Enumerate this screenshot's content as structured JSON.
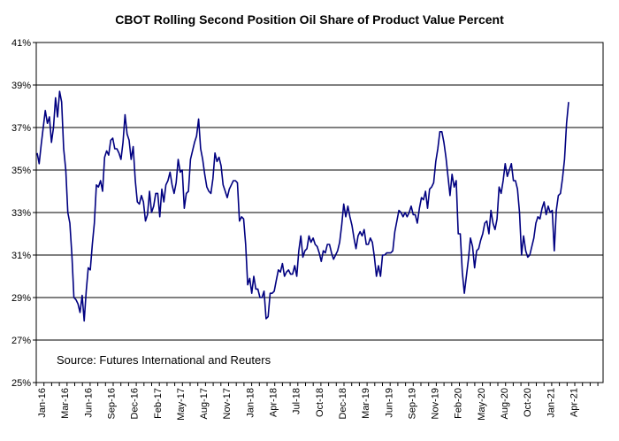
{
  "chart_data": {
    "type": "line",
    "title": "CBOT Rolling Second Position Oil Share of Product Value Percent",
    "annotation": "Source: Futures International and Reuters",
    "ylim": [
      25,
      41
    ],
    "y_ticks": [
      "25%",
      "27%",
      "29%",
      "31%",
      "33%",
      "35%",
      "37%",
      "39%",
      "41%"
    ],
    "x_ticks": [
      "Jan-16",
      "Mar-16",
      "Jun-16",
      "Sep-16",
      "Dec-16",
      "Feb-17",
      "May-17",
      "Aug-17",
      "Nov-17",
      "Jan-18",
      "Apr-18",
      "Jul-18",
      "Oct-18",
      "Dec-18",
      "Mar-19",
      "Jun-19",
      "Sep-19",
      "Nov-19",
      "Feb-20",
      "May-20",
      "Aug-20",
      "Oct-20",
      "Jan-21",
      "Apr-21"
    ],
    "grid": "horizontal",
    "line_color": "#000080",
    "series": [
      {
        "values": [
          35.8,
          35.3,
          36.2,
          37.0,
          37.8,
          37.2,
          37.5,
          36.3,
          37.0,
          38.4,
          37.5,
          38.7,
          38.2,
          36.0,
          35.0,
          33.0,
          32.5,
          31.0,
          29.0,
          28.9,
          28.7,
          28.3,
          29.1,
          27.9,
          29.3,
          30.4,
          30.3,
          31.5,
          32.5,
          34.3,
          34.2,
          34.5,
          34.0,
          35.6,
          35.9,
          35.7,
          36.4,
          36.5,
          36.0,
          36.0,
          35.8,
          35.5,
          36.3,
          37.6,
          36.7,
          36.4,
          35.5,
          36.1,
          34.5,
          33.5,
          33.4,
          33.8,
          33.5,
          32.6,
          32.9,
          34.0,
          33.0,
          33.3,
          33.9,
          33.9,
          32.8,
          34.1,
          33.5,
          34.3,
          34.5,
          34.9,
          34.3,
          33.9,
          34.4,
          35.5,
          34.9,
          35.0,
          33.2,
          33.9,
          34.0,
          35.5,
          35.9,
          36.3,
          36.6,
          37.4,
          36.0,
          35.5,
          34.8,
          34.2,
          34.0,
          33.9,
          34.6,
          35.8,
          35.4,
          35.6,
          35.2,
          34.3,
          34.0,
          33.7,
          34.1,
          34.3,
          34.5,
          34.5,
          34.4,
          32.6,
          32.8,
          32.7,
          31.5,
          29.6,
          29.9,
          29.2,
          30.0,
          29.4,
          29.4,
          29.0,
          29.0,
          29.3,
          28.0,
          28.1,
          29.2,
          29.2,
          29.3,
          29.8,
          30.3,
          30.2,
          30.6,
          30.0,
          30.2,
          30.3,
          30.1,
          30.1,
          30.5,
          30.0,
          31.2,
          31.9,
          30.9,
          31.2,
          31.3,
          31.9,
          31.6,
          31.8,
          31.5,
          31.4,
          31.1,
          30.7,
          31.2,
          31.1,
          31.5,
          31.5,
          31.1,
          30.8,
          31.0,
          31.2,
          31.6,
          32.4,
          33.4,
          32.8,
          33.3,
          32.8,
          32.4,
          31.8,
          31.3,
          31.9,
          32.1,
          31.9,
          32.2,
          31.5,
          31.5,
          31.8,
          31.6,
          30.9,
          30.0,
          30.5,
          30.0,
          31.0,
          31.0,
          31.1,
          31.1,
          31.1,
          31.2,
          32.1,
          32.6,
          33.1,
          33.0,
          32.8,
          33.0,
          32.8,
          33.0,
          33.3,
          32.9,
          32.9,
          32.5,
          33.2,
          33.7,
          33.6,
          34.0,
          33.2,
          34.1,
          34.2,
          34.4,
          35.4,
          36.0,
          36.8,
          36.8,
          36.3,
          35.6,
          34.7,
          33.8,
          34.8,
          34.2,
          34.5,
          32.0,
          32.0,
          30.2,
          29.2,
          30.0,
          30.8,
          31.8,
          31.4,
          30.4,
          31.2,
          31.3,
          31.7,
          32.0,
          32.5,
          32.6,
          32.0,
          33.1,
          32.5,
          32.2,
          32.7,
          34.2,
          33.9,
          34.5,
          35.3,
          34.7,
          35.0,
          35.3,
          34.5,
          34.5,
          34.1,
          33.0,
          31.0,
          31.9,
          31.2,
          30.9,
          31.0,
          31.4,
          31.8,
          32.5,
          32.8,
          32.7,
          33.2,
          33.5,
          32.9,
          33.3,
          33.0,
          33.1,
          31.2,
          33.1,
          33.8,
          33.9,
          34.6,
          35.5,
          37.2,
          38.2
        ]
      }
    ]
  }
}
